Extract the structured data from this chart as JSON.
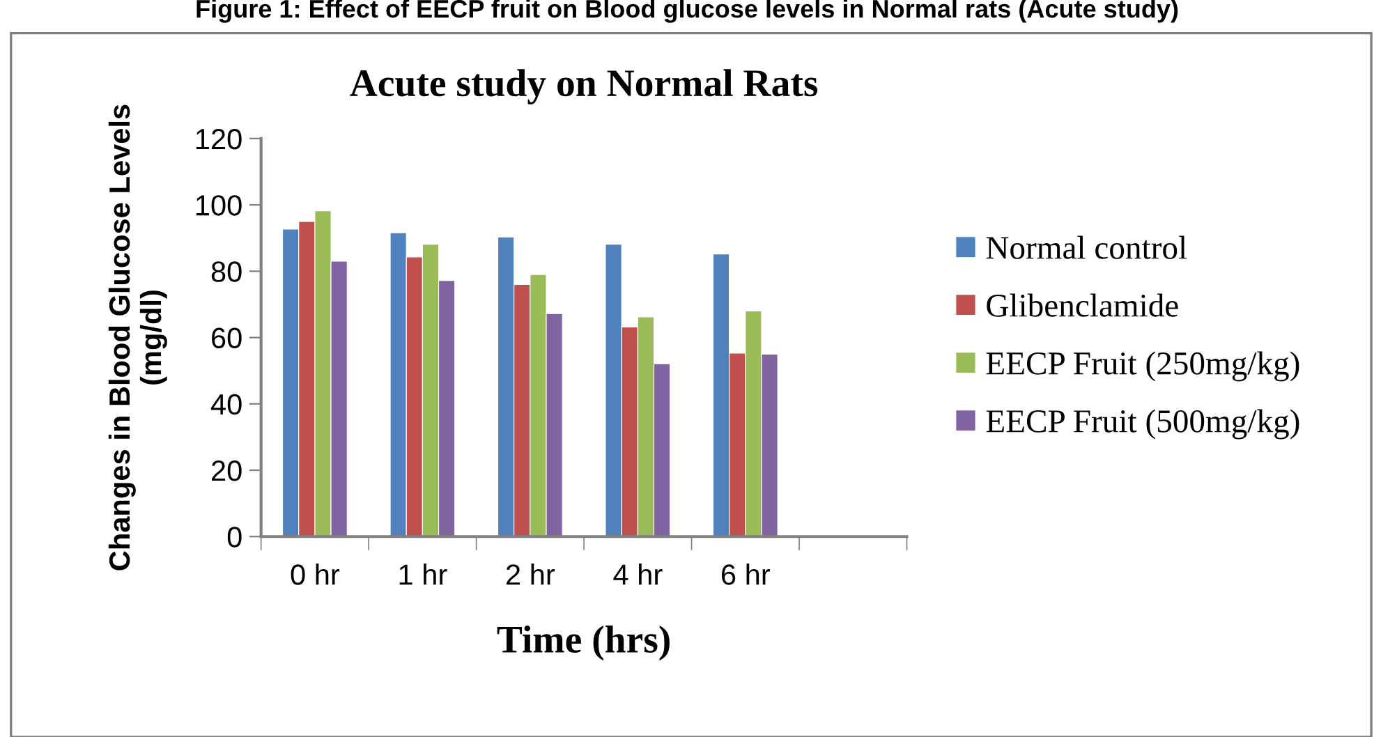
{
  "chart_data": {
    "type": "bar",
    "title": "Acute study on Normal Rats",
    "xlabel": "Time (hrs)",
    "ylabel": "Changes in Blood Glucose Levels\n(mg/dl)",
    "annotations": [
      "Figure 1: Effect of EECP fruit on Blood glucose levels in Normal rats (Acute study)"
    ],
    "categories": [
      "0 hr",
      "1 hr",
      "2 hr",
      "4 hr",
      "6 hr",
      null
    ],
    "series": [
      {
        "name": "Normal control",
        "color": "#4f81bd",
        "values": [
          92.7,
          91.6,
          90.3,
          88.1,
          85.2,
          null
        ]
      },
      {
        "name": "Glibenclamide",
        "color": "#c0504d",
        "values": [
          95,
          84.3,
          76,
          63.2,
          55.3,
          null
        ]
      },
      {
        "name": "EECP Fruit (250mg/kg)",
        "color": "#9bbb59",
        "values": [
          98.2,
          88.1,
          79,
          66.2,
          68,
          null
        ]
      },
      {
        "name": "EECP Fruit (500mg/kg)",
        "color": "#8064a2",
        "values": [
          83,
          77.2,
          67.2,
          52.1,
          55,
          null
        ]
      }
    ],
    "ylim": [
      0,
      120
    ],
    "yticks": [
      0,
      20,
      40,
      60,
      80,
      100,
      120
    ],
    "grid": false,
    "legend": "right"
  }
}
